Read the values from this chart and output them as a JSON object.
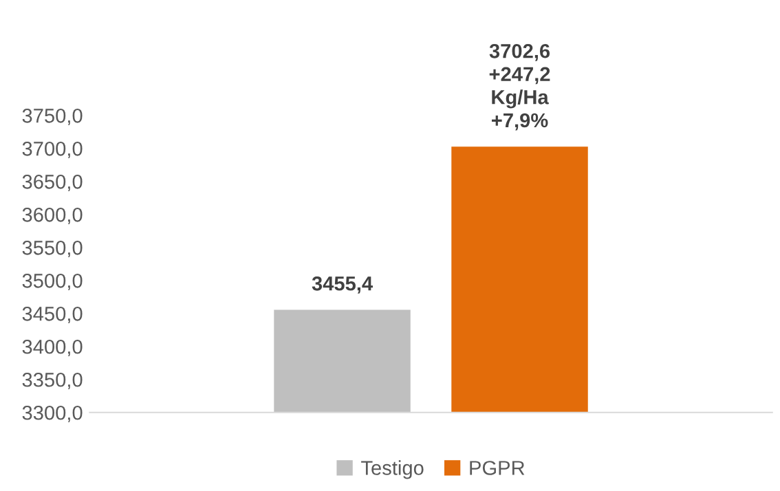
{
  "chart_data": {
    "type": "bar",
    "categories": [
      null
    ],
    "series": [
      {
        "name": "Testigo",
        "color": "#bfbfbf",
        "values": [
          3455.4
        ],
        "value_labels": [
          "3455,4"
        ]
      },
      {
        "name": "PGPR",
        "color": "#e36c0a",
        "values": [
          3702.6
        ],
        "value_labels": [
          "3702,6\n+247,2\nKg/Ha\n+7,9%"
        ]
      }
    ],
    "ylim": [
      3300,
      3750
    ],
    "yticks": [
      {
        "value": 3300,
        "label": "3300,0"
      },
      {
        "value": 3350,
        "label": "3350,0"
      },
      {
        "value": 3400,
        "label": "3400,0"
      },
      {
        "value": 3450,
        "label": "3450,0"
      },
      {
        "value": 3500,
        "label": "3500,0"
      },
      {
        "value": 3550,
        "label": "3550,0"
      },
      {
        "value": 3600,
        "label": "3600,0"
      },
      {
        "value": 3650,
        "label": "3650,0"
      },
      {
        "value": 3700,
        "label": "3700,0"
      },
      {
        "value": 3750,
        "label": "3750,0"
      }
    ],
    "tick_labels": "y",
    "grid": false,
    "legend": "bottom"
  }
}
